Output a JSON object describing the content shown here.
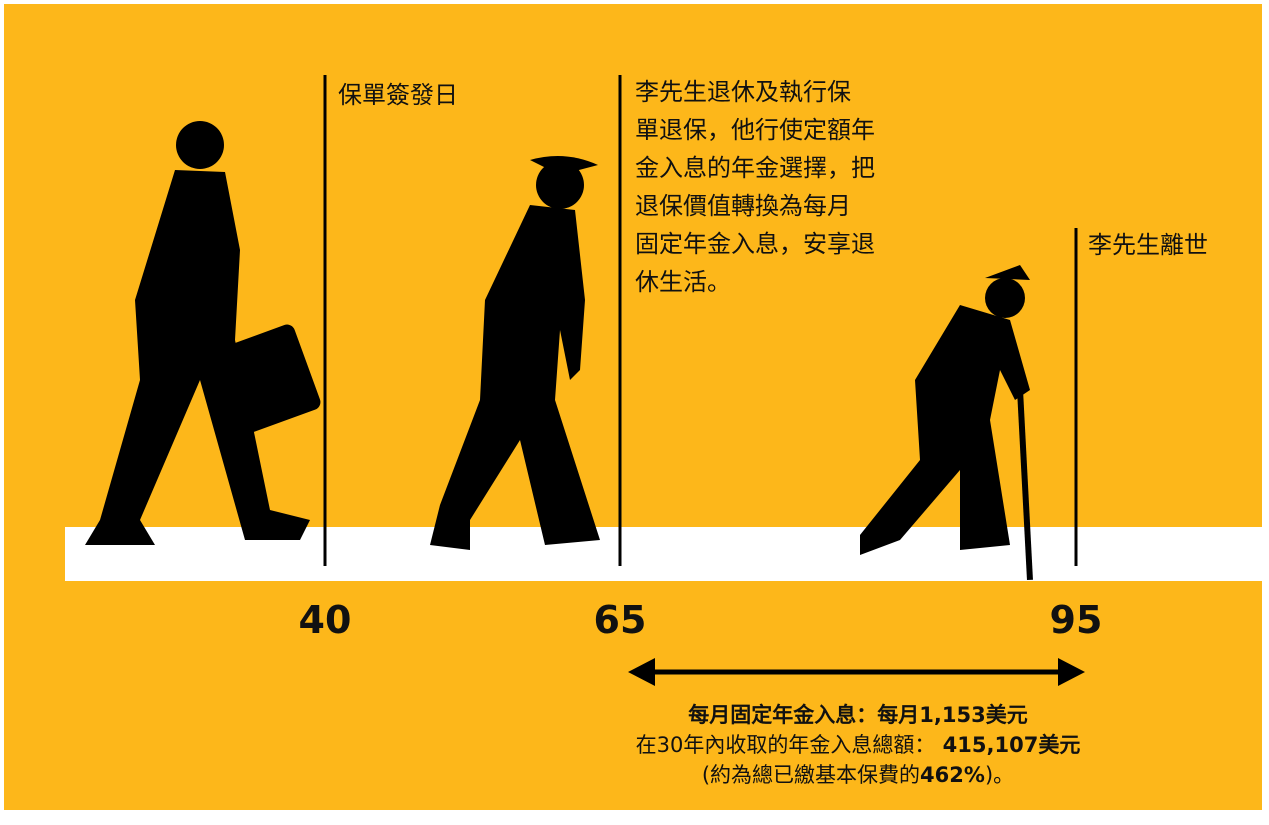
{
  "milestones": [
    {
      "age": "40",
      "lines": [
        "保單簽發日"
      ]
    },
    {
      "age": "65",
      "lines": [
        "李先生退休及執行保",
        "單退保，他行使定額年",
        "金入息的年金選擇，把",
        "退保價值轉換為每月",
        "固定年金入息，安享退",
        "休生活。"
      ]
    },
    {
      "age": "95",
      "lines": [
        "李先生離世"
      ]
    }
  ],
  "summary": [
    [
      {
        "text": "每月固定年金入息：每月1,153美元",
        "bold": true
      }
    ],
    [
      {
        "text": "在30年內收取的年金入息總額：",
        "bold": false
      },
      {
        "text": " 415,107美元",
        "bold": true
      }
    ],
    [
      {
        "text": "(約為總已繳基本保費的",
        "bold": false
      },
      {
        "text": "462%",
        "bold": true
      },
      {
        "text": ")。",
        "bold": false
      }
    ]
  ]
}
